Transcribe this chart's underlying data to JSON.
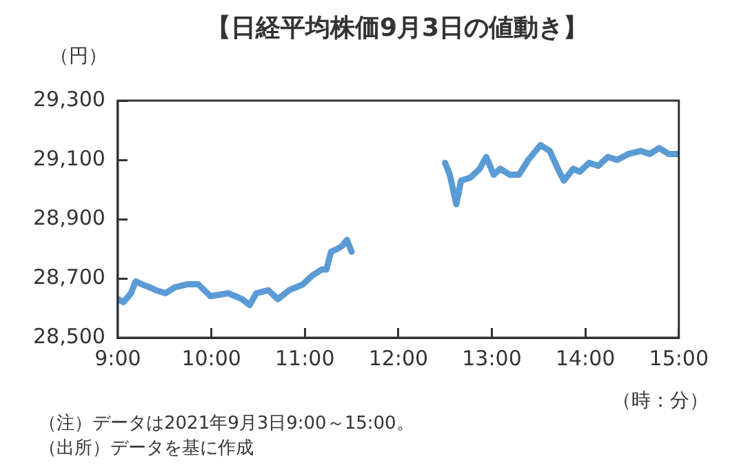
{
  "chart_data": {
    "type": "line",
    "title": "【日経平均株価9月3日の値動き】",
    "ylabel": "（円）",
    "xlabel": "（時：分）",
    "annotations": [
      "（注）データは2021年9月3日9:00～15:00。",
      "（出所）データを基に作成"
    ],
    "series": [
      {
        "color": "#5b9bd5",
        "x": [
          9.0,
          9.06,
          9.14,
          9.19,
          9.26,
          9.34,
          9.41,
          9.51,
          9.61,
          9.74,
          9.86,
          9.99,
          10.18,
          10.33,
          10.41,
          10.48,
          10.61,
          10.71,
          10.83,
          10.98,
          11.08,
          11.18,
          11.23,
          11.28,
          11.35,
          11.4,
          11.45,
          11.5,
          12.0,
          12.5,
          12.55,
          12.62,
          12.67,
          12.77,
          12.87,
          12.94,
          13.02,
          13.09,
          13.19,
          13.29,
          13.39,
          13.52,
          13.62,
          13.72,
          13.77,
          13.87,
          13.94,
          14.04,
          14.14,
          14.24,
          14.34,
          14.46,
          14.59,
          14.69,
          14.79,
          14.89,
          14.99
        ],
        "values": [
          28630,
          28620,
          28650,
          28690,
          28680,
          28670,
          28660,
          28650,
          28670,
          28680,
          28680,
          28640,
          28650,
          28630,
          28610,
          28650,
          28660,
          28630,
          28660,
          28680,
          28710,
          28730,
          28730,
          28790,
          28800,
          28810,
          28830,
          28790,
          null,
          29090,
          29050,
          28950,
          29030,
          29040,
          29070,
          29110,
          29050,
          29070,
          29050,
          29050,
          29100,
          29150,
          29130,
          29060,
          29030,
          29070,
          29060,
          29090,
          29080,
          29110,
          29100,
          29120,
          29130,
          29120,
          29140,
          29120,
          29120
        ]
      }
    ],
    "xlim": [
      9,
      15
    ],
    "xticks": [
      {
        "value": 9,
        "label": "9:00"
      },
      {
        "value": 10,
        "label": "10:00"
      },
      {
        "value": 11,
        "label": "11:00"
      },
      {
        "value": 12,
        "label": "12:00"
      },
      {
        "value": 13,
        "label": "13:00"
      },
      {
        "value": 14,
        "label": "14:00"
      },
      {
        "value": 15,
        "label": "15:00"
      }
    ],
    "ylim": [
      28500,
      29300
    ],
    "yticks": [
      {
        "value": 28500,
        "label": "28,500"
      },
      {
        "value": 28700,
        "label": "28,700"
      },
      {
        "value": 28900,
        "label": "28,900"
      },
      {
        "value": 29100,
        "label": "29,100"
      },
      {
        "value": 29300,
        "label": "29,300"
      }
    ],
    "grid": false,
    "legend": false,
    "marker": "none",
    "line_style": "solid"
  }
}
